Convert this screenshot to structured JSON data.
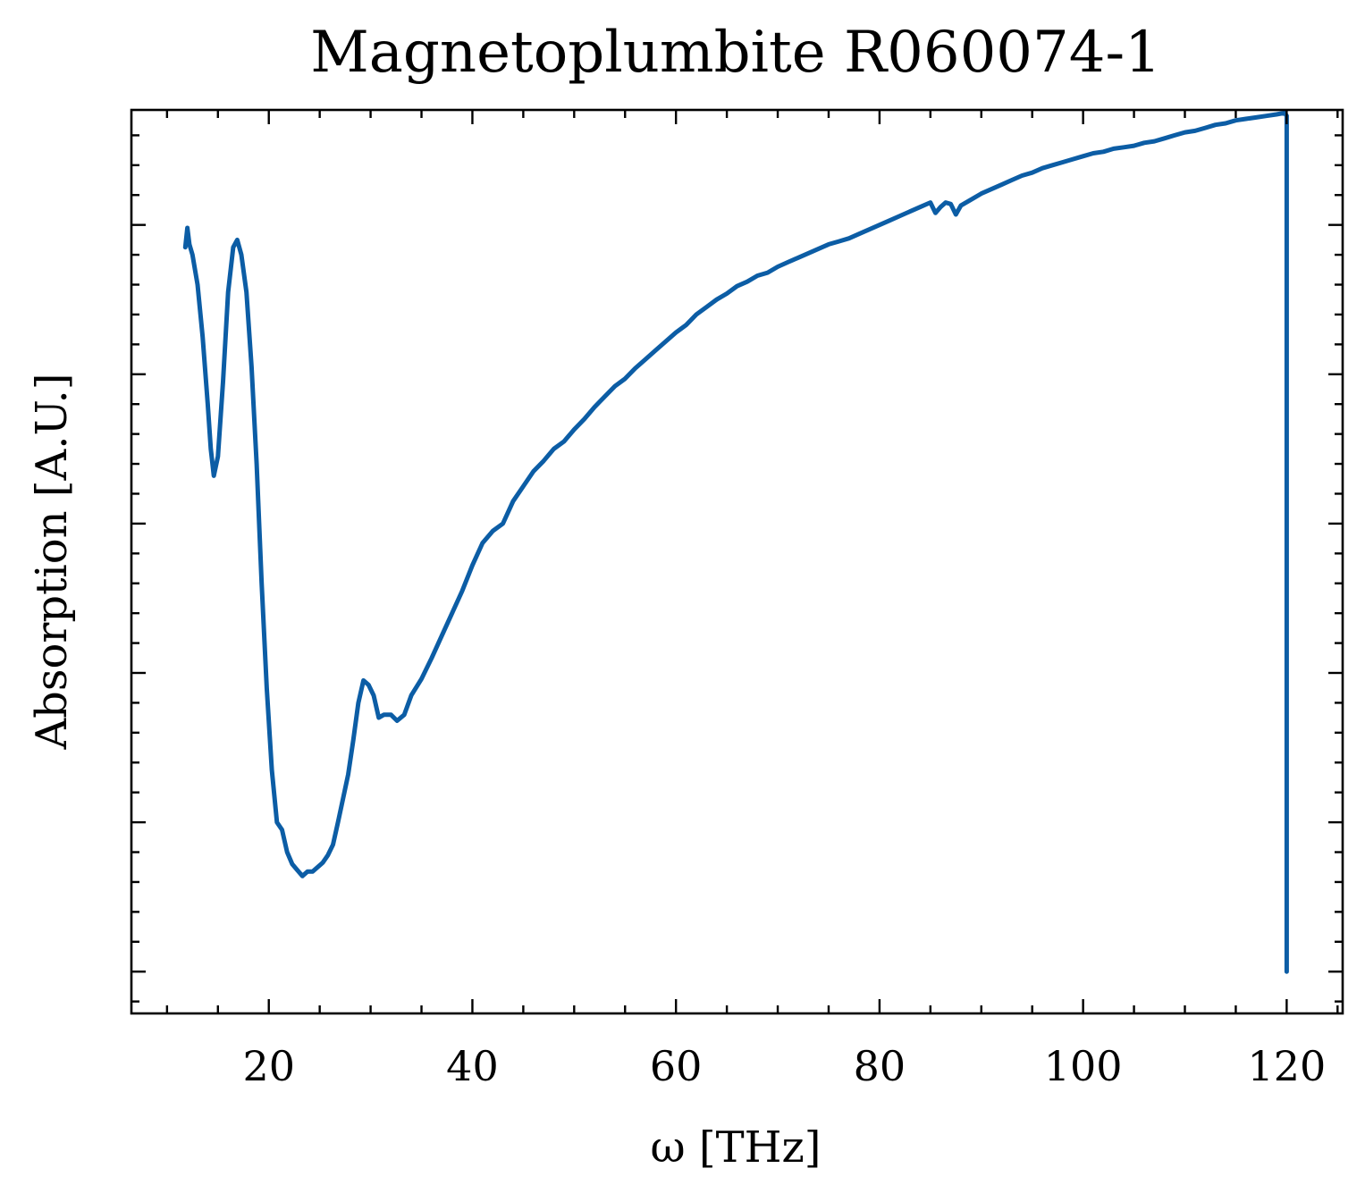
{
  "chart_data": {
    "type": "line",
    "title": "Magnetoplumbite R060074-1",
    "xlabel": "ω [THz]",
    "ylabel": "Absorption [A.U.]",
    "xlim": [
      6.5,
      125.5
    ],
    "ylim": [
      -0.28,
      5.77
    ],
    "xticks": [
      20,
      40,
      60,
      80,
      100,
      120
    ],
    "xtick_labels": [
      "20",
      "40",
      "60",
      "80",
      100,
      "120"
    ],
    "yticks": [
      0,
      1,
      2,
      3,
      4,
      5
    ],
    "ytick_labels": [],
    "minor_ticks": true,
    "ticks_direction": "in",
    "grid": false,
    "legend": "none",
    "line_color": "#0C5DA5",
    "series": [
      {
        "x": [
          11.8,
          12.0,
          12.2,
          12.5,
          13.0,
          13.5,
          14.0,
          14.3,
          14.6,
          15.0,
          15.5,
          16.0,
          16.5,
          16.9,
          17.3,
          17.8,
          18.3,
          18.8,
          19.3,
          19.8,
          20.3,
          20.8,
          21.3,
          21.8,
          22.3,
          22.8,
          23.3,
          23.8,
          24.3,
          24.8,
          25.3,
          25.8,
          26.3,
          26.8,
          27.3,
          27.8,
          28.3,
          28.8,
          29.3,
          29.8,
          30.3,
          30.8,
          31.3,
          32.0,
          32.6,
          33.3,
          34.0,
          35.0,
          36.0,
          37.0,
          38.0,
          39.0,
          40.0,
          41.0,
          42.0,
          43.0,
          44.0,
          45.0,
          46.0,
          47.0,
          48.0,
          49.0,
          50.0,
          51.0,
          52.0,
          53.0,
          54.0,
          55.0,
          56.0,
          57.0,
          58.0,
          59.0,
          60.0,
          61.0,
          62.0,
          63.0,
          64.0,
          65.0,
          66.0,
          67.0,
          68.0,
          69.0,
          70.0,
          71.0,
          72.0,
          73.0,
          74.0,
          75.0,
          76.0,
          77.0,
          78.0,
          79.0,
          80.0,
          81.0,
          82.0,
          83.0,
          84.0,
          85.0,
          85.5,
          86.0,
          86.5,
          87.0,
          87.5,
          88.0,
          89.0,
          90.0,
          91.0,
          92.0,
          93.0,
          94.0,
          95.0,
          96.0,
          97.0,
          98.0,
          99.0,
          100.0,
          101.0,
          102.0,
          103.0,
          104.0,
          105.0,
          106.0,
          107.0,
          108.0,
          109.0,
          110.0,
          111.0,
          112.0,
          113.0,
          114.0,
          115.0,
          116.0,
          117.0,
          118.0,
          119.0,
          119.8,
          120.0,
          120.0
        ],
        "y": [
          4.85,
          4.98,
          4.87,
          4.8,
          4.6,
          4.25,
          3.8,
          3.5,
          3.32,
          3.45,
          3.95,
          4.55,
          4.85,
          4.9,
          4.8,
          4.55,
          4.05,
          3.4,
          2.6,
          1.9,
          1.35,
          1.0,
          0.95,
          0.8,
          0.72,
          0.68,
          0.64,
          0.67,
          0.67,
          0.7,
          0.73,
          0.78,
          0.85,
          1.0,
          1.16,
          1.32,
          1.55,
          1.8,
          1.95,
          1.92,
          1.85,
          1.7,
          1.72,
          1.72,
          1.68,
          1.72,
          1.85,
          1.96,
          2.1,
          2.25,
          2.4,
          2.55,
          2.72,
          2.87,
          2.95,
          3.0,
          3.15,
          3.25,
          3.35,
          3.42,
          3.5,
          3.55,
          3.63,
          3.7,
          3.78,
          3.85,
          3.92,
          3.97,
          4.04,
          4.1,
          4.16,
          4.22,
          4.28,
          4.33,
          4.4,
          4.45,
          4.5,
          4.54,
          4.59,
          4.62,
          4.66,
          4.68,
          4.72,
          4.75,
          4.78,
          4.81,
          4.84,
          4.87,
          4.89,
          4.91,
          4.94,
          4.97,
          5.0,
          5.03,
          5.06,
          5.09,
          5.12,
          5.15,
          5.08,
          5.12,
          5.15,
          5.14,
          5.07,
          5.13,
          5.17,
          5.21,
          5.24,
          5.27,
          5.3,
          5.33,
          5.35,
          5.38,
          5.4,
          5.42,
          5.44,
          5.46,
          5.48,
          5.49,
          5.51,
          5.52,
          5.53,
          5.55,
          5.56,
          5.58,
          5.6,
          5.62,
          5.63,
          5.65,
          5.67,
          5.68,
          5.7,
          5.71,
          5.72,
          5.73,
          5.74,
          5.75,
          5.73,
          0.0
        ]
      }
    ]
  }
}
